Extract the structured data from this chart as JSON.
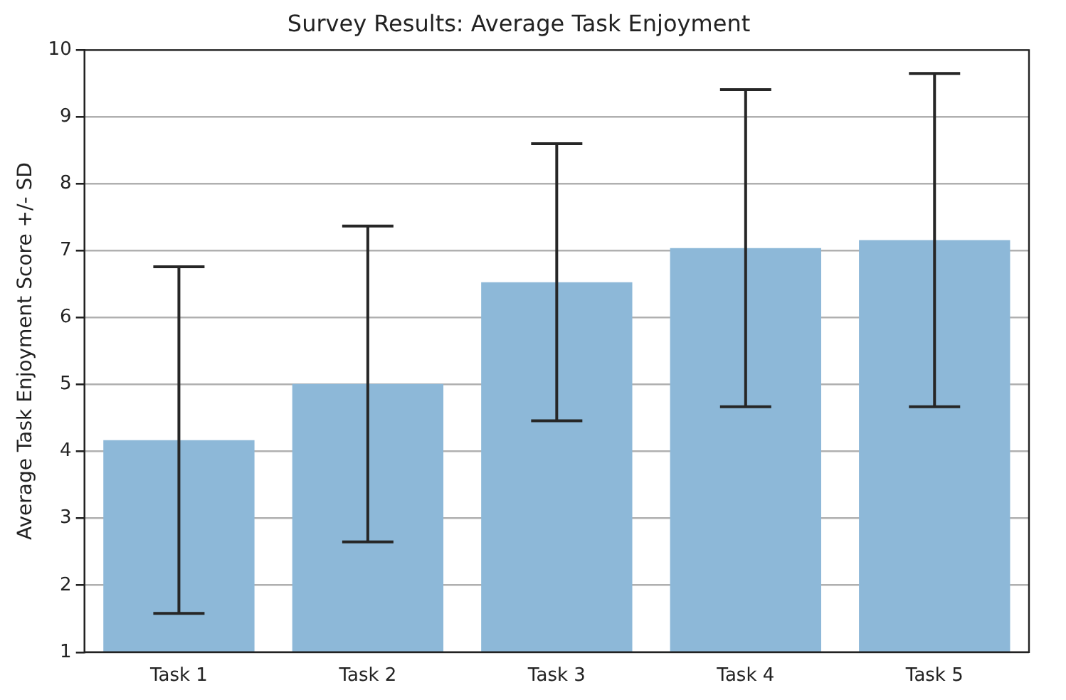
{
  "chart_data": {
    "type": "bar",
    "title": "Survey Results: Average Task Enjoyment",
    "ylabel": "Average Task Enjoyment Score +/- SD",
    "categories": [
      "Task 1",
      "Task 2",
      "Task 3",
      "Task 4",
      "Task 5"
    ],
    "values": [
      4.17,
      5.01,
      6.53,
      7.04,
      7.16
    ],
    "errors": [
      2.59,
      2.36,
      2.07,
      2.37,
      2.49
    ],
    "color": "#8db8d8",
    "ylim": [
      1,
      10
    ],
    "yticks": [
      1,
      2,
      3,
      4,
      5,
      6,
      7,
      8,
      9,
      10
    ],
    "grid": "y",
    "legend": false
  }
}
